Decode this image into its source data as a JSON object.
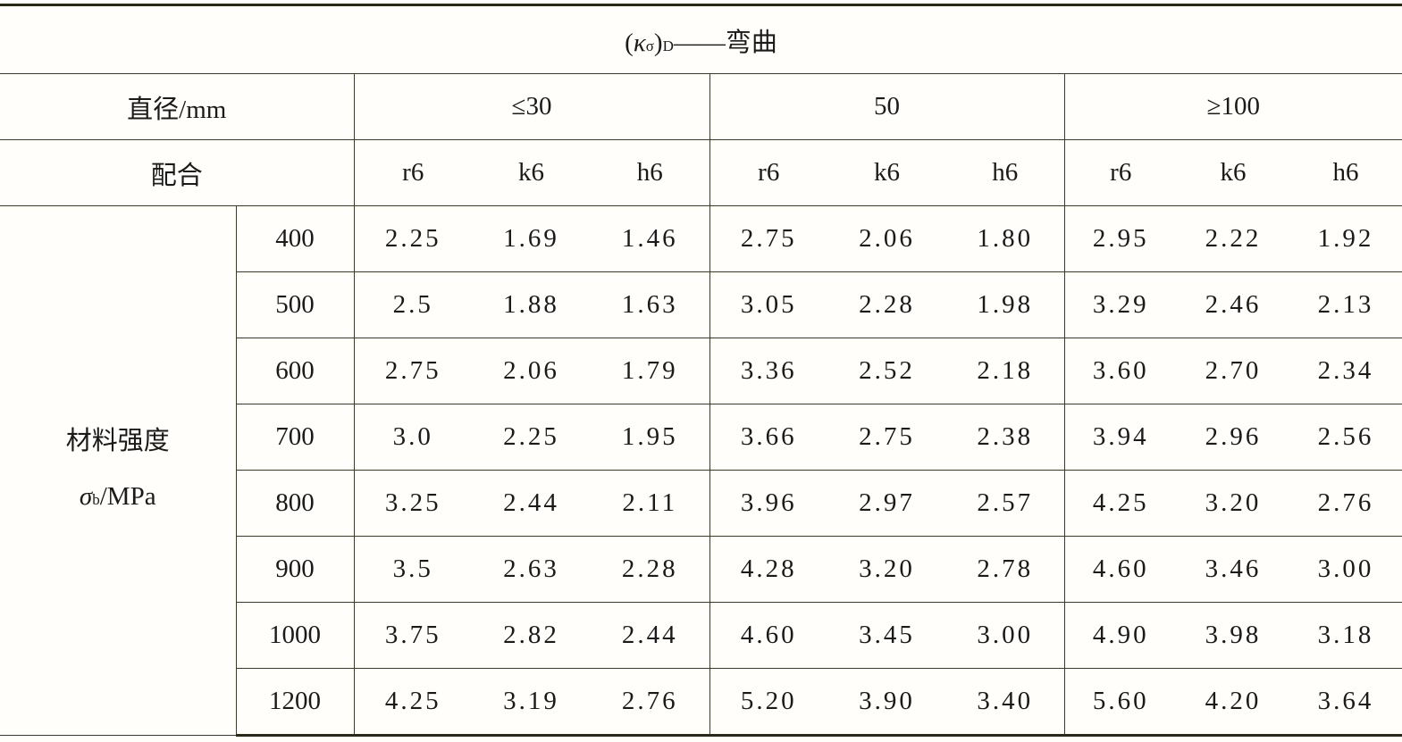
{
  "title": {
    "kappa": "κ",
    "sigma_sub": "σ",
    "d_sub": "D",
    "suffix": "——弯曲"
  },
  "header": {
    "diameter_label": "直径/mm",
    "fit_label": "配合",
    "diameters": [
      "≤30",
      "50",
      "≥100"
    ],
    "fits": [
      "r6",
      "k6",
      "h6"
    ]
  },
  "row_group": {
    "line1": "材料强度",
    "sigma": "σ",
    "sigma_sub": "b",
    "unit": "/MPa"
  },
  "rows": [
    {
      "strength": "400",
      "values": [
        "2.25",
        "1.69",
        "1.46",
        "2.75",
        "2.06",
        "1.80",
        "2.95",
        "2.22",
        "1.92"
      ]
    },
    {
      "strength": "500",
      "values": [
        "2.5",
        "1.88",
        "1.63",
        "3.05",
        "2.28",
        "1.98",
        "3.29",
        "2.46",
        "2.13"
      ]
    },
    {
      "strength": "600",
      "values": [
        "2.75",
        "2.06",
        "1.79",
        "3.36",
        "2.52",
        "2.18",
        "3.60",
        "2.70",
        "2.34"
      ]
    },
    {
      "strength": "700",
      "values": [
        "3.0",
        "2.25",
        "1.95",
        "3.66",
        "2.75",
        "2.38",
        "3.94",
        "2.96",
        "2.56"
      ]
    },
    {
      "strength": "800",
      "values": [
        "3.25",
        "2.44",
        "2.11",
        "3.96",
        "2.97",
        "2.57",
        "4.25",
        "3.20",
        "2.76"
      ]
    },
    {
      "strength": "900",
      "values": [
        "3.5",
        "2.63",
        "2.28",
        "4.28",
        "3.20",
        "2.78",
        "4.60",
        "3.46",
        "3.00"
      ]
    },
    {
      "strength": "1000",
      "values": [
        "3.75",
        "2.82",
        "2.44",
        "4.60",
        "3.45",
        "3.00",
        "4.90",
        "3.98",
        "3.18"
      ]
    },
    {
      "strength": "1200",
      "values": [
        "4.25",
        "3.19",
        "2.76",
        "5.20",
        "3.90",
        "3.40",
        "5.60",
        "4.20",
        "3.64"
      ]
    }
  ]
}
